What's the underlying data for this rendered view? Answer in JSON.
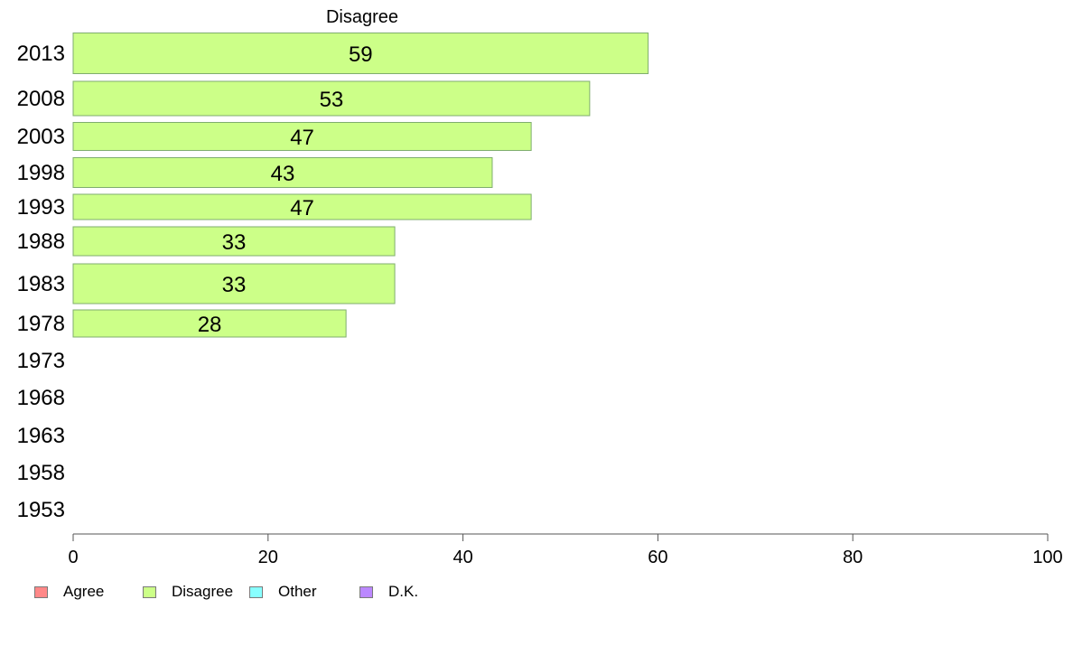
{
  "chart_data": {
    "type": "bar",
    "orientation": "horizontal",
    "title": "Disagree",
    "xlabel": "",
    "ylabel": "",
    "xlim": [
      0,
      100
    ],
    "xticks": [
      "0",
      "20",
      "40",
      "60",
      "80",
      "100"
    ],
    "categories": [
      "2013",
      "2008",
      "2003",
      "1998",
      "1993",
      "1988",
      "1983",
      "1978",
      "1973",
      "1968",
      "1963",
      "1958",
      "1953"
    ],
    "series": [
      {
        "name": "Disagree",
        "color": "#ccff88",
        "values": [
          59,
          53,
          47,
          43,
          47,
          33,
          33,
          28,
          null,
          null,
          null,
          null,
          null
        ],
        "labels": [
          "59",
          "53",
          "47",
          "43",
          "47",
          "33",
          "33",
          "28",
          "",
          "",
          "",
          "",
          ""
        ]
      }
    ],
    "grid": false,
    "legend_position": "bottom-left",
    "legend": [
      {
        "label": "Agree",
        "color": "#ff8888"
      },
      {
        "label": "Disagree",
        "color": "#ccff88"
      },
      {
        "label": "Other",
        "color": "#88ffff"
      },
      {
        "label": "D.K.",
        "color": "#bb88ff"
      }
    ]
  }
}
